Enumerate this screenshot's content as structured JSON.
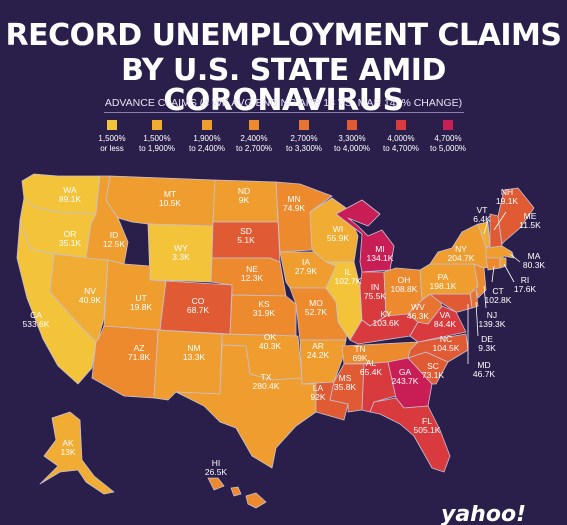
{
  "title_line1": "RECORD UNEMPLOYMENT CLAIMS",
  "title_line2": "BY U.S. STATE AMID CORONAVIRUS",
  "subtitle": "ADVANCE CLAIMS (4 WK AVG ENDING APR 18 VS. MAR 14, % CHANGE)",
  "logo": "yahoo!",
  "legend": [
    {
      "line1": "1,500%",
      "line2": "or less",
      "color": "#f3c33a"
    },
    {
      "line1": "1,500%",
      "line2": "to 1,900%",
      "color": "#f1ad33"
    },
    {
      "line1": "1,900%",
      "line2": "to 2,400%",
      "color": "#ef9d2e"
    },
    {
      "line1": "2,400%",
      "line2": "to 2,700%",
      "color": "#ec8a2d"
    },
    {
      "line1": "2,700%",
      "line2": "to 3,300%",
      "color": "#e77430"
    },
    {
      "line1": "3,300%",
      "line2": "to 4,000%",
      "color": "#e05a33"
    },
    {
      "line1": "4,000%",
      "line2": "to 4,700%",
      "color": "#d83a3e"
    },
    {
      "line1": "4,700%",
      "line2": "to 5,000%",
      "color": "#c91e55"
    }
  ],
  "states": [
    {
      "abbr": "WA",
      "value": "89.1K",
      "bin": 0
    },
    {
      "abbr": "OR",
      "value": "35.1K",
      "bin": 0
    },
    {
      "abbr": "CA",
      "value": "533.6K",
      "bin": 0
    },
    {
      "abbr": "NV",
      "value": "40.9K",
      "bin": 1
    },
    {
      "abbr": "ID",
      "value": "12.5K",
      "bin": 2
    },
    {
      "abbr": "MT",
      "value": "10.5K",
      "bin": 2
    },
    {
      "abbr": "WY",
      "value": "3.3K",
      "bin": 0
    },
    {
      "abbr": "UT",
      "value": "19.8K",
      "bin": 2
    },
    {
      "abbr": "AZ",
      "value": "71.8K",
      "bin": 3
    },
    {
      "abbr": "CO",
      "value": "68.7K",
      "bin": 5
    },
    {
      "abbr": "NM",
      "value": "13.3K",
      "bin": 2
    },
    {
      "abbr": "ND",
      "value": "9K",
      "bin": 2
    },
    {
      "abbr": "SD",
      "value": "5.1K",
      "bin": 5
    },
    {
      "abbr": "NE",
      "value": "12.3K",
      "bin": 3
    },
    {
      "abbr": "KS",
      "value": "31.9K",
      "bin": 3
    },
    {
      "abbr": "OK",
      "value": "40.3K",
      "bin": 2
    },
    {
      "abbr": "TX",
      "value": "280.4K",
      "bin": 2
    },
    {
      "abbr": "MN",
      "value": "74.9K",
      "bin": 3
    },
    {
      "abbr": "IA",
      "value": "27.9K",
      "bin": 2
    },
    {
      "abbr": "MO",
      "value": "52.7K",
      "bin": 3
    },
    {
      "abbr": "AR",
      "value": "24.2K",
      "bin": 2
    },
    {
      "abbr": "LA",
      "value": "92K",
      "bin": 5
    },
    {
      "abbr": "WI",
      "value": "55.9K",
      "bin": 1
    },
    {
      "abbr": "IL",
      "value": "102.7K",
      "bin": 0
    },
    {
      "abbr": "MI",
      "value": "134.1K",
      "bin": 7
    },
    {
      "abbr": "IN",
      "value": "75.5K",
      "bin": 6
    },
    {
      "abbr": "OH",
      "value": "108.8K",
      "bin": 3
    },
    {
      "abbr": "KY",
      "value": "103.6K",
      "bin": 6
    },
    {
      "abbr": "TN",
      "value": "69K",
      "bin": 3
    },
    {
      "abbr": "MS",
      "value": "35.8K",
      "bin": 5
    },
    {
      "abbr": "AL",
      "value": "65.4K",
      "bin": 6
    },
    {
      "abbr": "GA",
      "value": "243.7K",
      "bin": 7
    },
    {
      "abbr": "FL",
      "value": "505.1K",
      "bin": 6
    },
    {
      "abbr": "SC",
      "value": "73.1K",
      "bin": 5
    },
    {
      "abbr": "NC",
      "value": "104.5K",
      "bin": 5
    },
    {
      "abbr": "VA",
      "value": "84.4K",
      "bin": 6
    },
    {
      "abbr": "WV",
      "value": "46.3K",
      "bin": 4
    },
    {
      "abbr": "PA",
      "value": "198.1K",
      "bin": 2
    },
    {
      "abbr": "NY",
      "value": "204.7K",
      "bin": 2
    },
    {
      "abbr": "VT",
      "value": "6.4K",
      "bin": 1
    },
    {
      "abbr": "NH",
      "value": "19.1K",
      "bin": 5
    },
    {
      "abbr": "ME",
      "value": "11.5K",
      "bin": 5
    },
    {
      "abbr": "MA",
      "value": "80.3K",
      "bin": 2
    },
    {
      "abbr": "RI",
      "value": "17.6K",
      "bin": 2
    },
    {
      "abbr": "CT",
      "value": "102.8K",
      "bin": 3
    },
    {
      "abbr": "NJ",
      "value": "139.3K",
      "bin": 3
    },
    {
      "abbr": "DE",
      "value": "9.3K",
      "bin": 4
    },
    {
      "abbr": "MD",
      "value": "46.7K",
      "bin": 5
    },
    {
      "abbr": "AK",
      "value": "13K",
      "bin": 1
    },
    {
      "abbr": "HI",
      "value": "26.5K",
      "bin": 3
    }
  ]
}
